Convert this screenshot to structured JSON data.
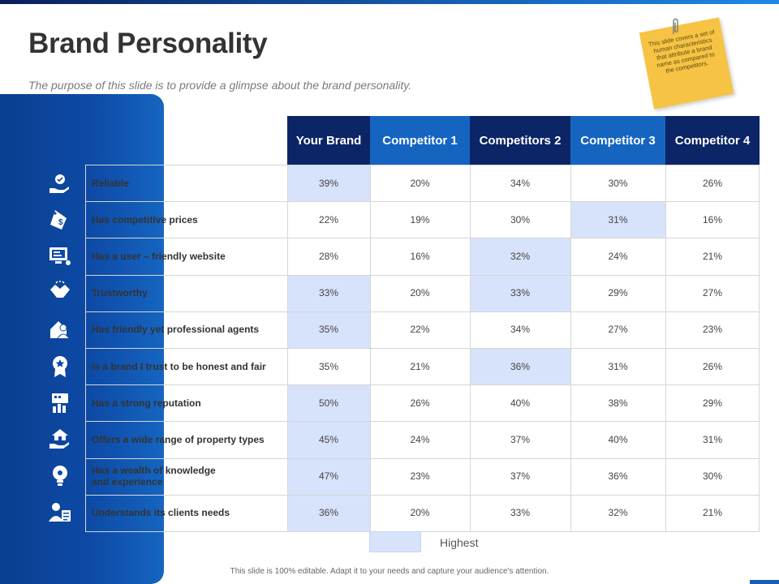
{
  "title": "Brand Personality",
  "subtitle": "The purpose of this slide is to provide a glimpse about the brand personality.",
  "note": "This slide covers a set of human characteristics that attribute a brand name as compared to the competitors.",
  "columns": [
    "Your Brand",
    "Competitor 1",
    "Competitors 2",
    "Competitor 3",
    "Competitor 4"
  ],
  "header_colors": [
    "#0b2566",
    "#1565c0",
    "#0b2566",
    "#1565c0",
    "#0b2566"
  ],
  "highlight_color": "#d7e3fb",
  "rows": [
    {
      "label": "Reliable",
      "icon": "hand-check-icon",
      "values": [
        "39%",
        "20%",
        "34%",
        "30%",
        "26%"
      ],
      "highlight": [
        0
      ]
    },
    {
      "label": "Has competitive prices",
      "icon": "price-tag-icon",
      "values": [
        "22%",
        "19%",
        "30%",
        "31%",
        "16%"
      ],
      "highlight": [
        3
      ]
    },
    {
      "label": "Has a user – friendly website",
      "icon": "website-icon",
      "values": [
        "28%",
        "16%",
        "32%",
        "24%",
        "21%"
      ],
      "highlight": [
        2
      ]
    },
    {
      "label": "Trustworthy",
      "icon": "handshake-icon",
      "values": [
        "33%",
        "20%",
        "33%",
        "29%",
        "27%"
      ],
      "highlight": [
        0,
        2
      ]
    },
    {
      "label": "Has friendly yet professional agents",
      "icon": "agent-house-icon",
      "values": [
        "35%",
        "22%",
        "34%",
        "27%",
        "23%"
      ],
      "highlight": [
        0
      ]
    },
    {
      "label": "Is a brand I trust to be honest and fair",
      "icon": "badge-icon",
      "values": [
        "35%",
        "21%",
        "36%",
        "31%",
        "26%"
      ],
      "highlight": [
        2
      ]
    },
    {
      "label": "Has a strong reputation",
      "icon": "reputation-icon",
      "values": [
        "50%",
        "26%",
        "40%",
        "38%",
        "29%"
      ],
      "highlight": [
        0
      ]
    },
    {
      "label": "Offers a wide range of property types",
      "icon": "hand-house-icon",
      "values": [
        "45%",
        "24%",
        "37%",
        "40%",
        "31%"
      ],
      "highlight": [
        0
      ]
    },
    {
      "label": "Has a wealth of knowledge\nand experience",
      "icon": "lightbulb-icon",
      "values": [
        "47%",
        "23%",
        "37%",
        "36%",
        "30%"
      ],
      "highlight": [
        0
      ]
    },
    {
      "label": "Understands its clients needs",
      "icon": "client-icon",
      "values": [
        "36%",
        "20%",
        "33%",
        "32%",
        "21%"
      ],
      "highlight": [
        0
      ]
    }
  ],
  "legend": "Highest",
  "footer": "This slide is 100% editable. Adapt it to your needs and capture your audience's attention."
}
